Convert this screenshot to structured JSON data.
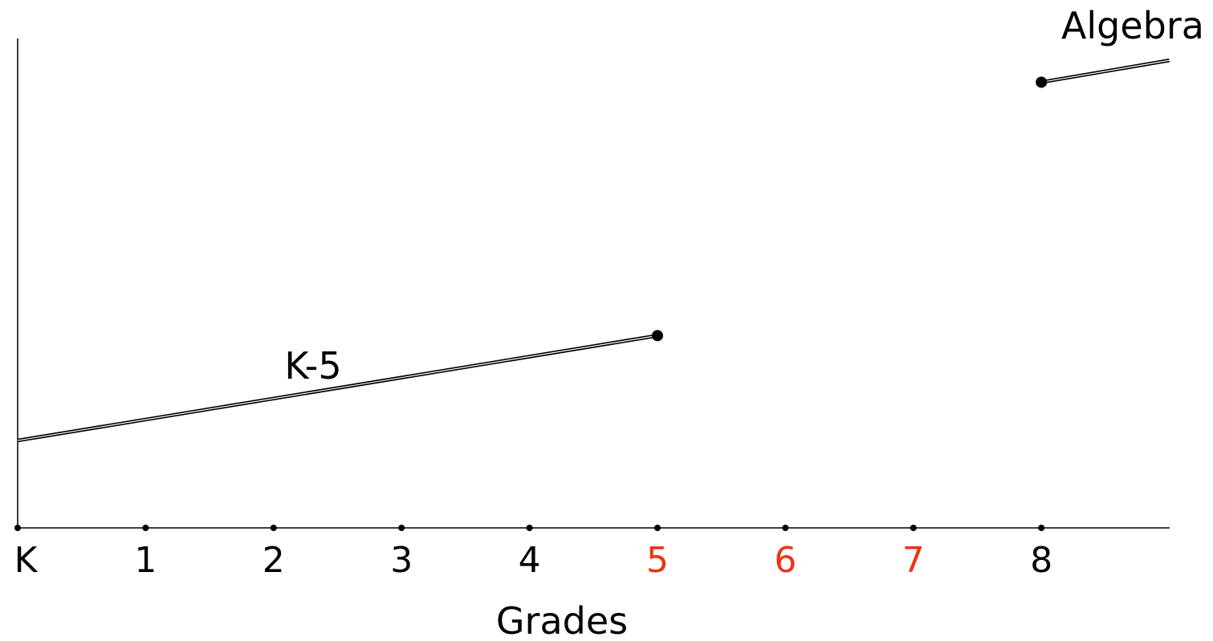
{
  "chart_data": {
    "type": "line",
    "xlabel": "Grades",
    "ylabel": "",
    "categories": [
      "K",
      "1",
      "2",
      "3",
      "4",
      "5",
      "6",
      "7",
      "8"
    ],
    "highlighted_categories": [
      "5",
      "6",
      "7"
    ],
    "series": [
      {
        "name": "K-5",
        "points": [
          {
            "grade": 0,
            "value": 1.0
          },
          {
            "grade": 5,
            "value": 2.2
          }
        ],
        "end_marker": "dot"
      },
      {
        "name": "Algebra",
        "points": [
          {
            "grade": 8,
            "value": 5.1
          },
          {
            "grade": 9,
            "value": 5.35
          }
        ],
        "start_marker": "dot"
      }
    ],
    "xlim": [
      0,
      9
    ],
    "ylim": [
      0,
      5.6
    ]
  },
  "colors": {
    "axis": "#000000",
    "line": "#000000",
    "highlight": "#ee3311"
  }
}
